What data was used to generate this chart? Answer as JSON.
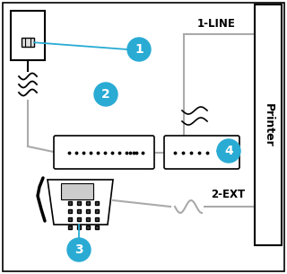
{
  "bg_color": "#ffffff",
  "border_color": "#000000",
  "line_color": "#aaaaaa",
  "teal_color": "#29ABD4",
  "label_color": "#000000",
  "printer_label": "Printer",
  "line1_label": "1-LINE",
  "line2_label": "2-EXT",
  "figsize": [
    3.2,
    3.05
  ],
  "dpi": 100
}
